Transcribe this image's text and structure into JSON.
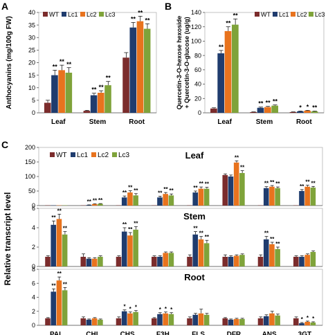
{
  "colors": {
    "WT": "#7b2c2c",
    "Lc1": "#1f3c6e",
    "Lc2": "#e8731e",
    "Lc3": "#7fa33a"
  },
  "chart_data": [
    {
      "panel": "A",
      "type": "bar",
      "categories": [
        "Leaf",
        "Stem",
        "Root"
      ],
      "ylabel": "Anthocyanins (mg/100g FW)",
      "ylim": [
        0,
        40
      ],
      "yticks": [
        0,
        5,
        10,
        15,
        20,
        25,
        30,
        35,
        40
      ],
      "tick_labels": [
        "0",
        "5",
        "10",
        "15",
        "20",
        "25",
        "30",
        "35",
        "40"
      ],
      "legend": [
        "WT",
        "Lc1",
        "Lc2",
        "Lc3"
      ],
      "legend_position": "top-left",
      "series": [
        {
          "name": "WT",
          "values": [
            4,
            0.8,
            22
          ],
          "errors": [
            1,
            0.2,
            2
          ],
          "marks": [
            "",
            "",
            ""
          ]
        },
        {
          "name": "Lc1",
          "values": [
            15,
            7,
            34
          ],
          "errors": [
            2,
            0.8,
            2
          ],
          "marks": [
            "**",
            "**",
            "**"
          ]
        },
        {
          "name": "Lc2",
          "values": [
            17,
            8,
            36.5
          ],
          "errors": [
            2,
            0.8,
            2
          ],
          "marks": [
            "**",
            "**",
            "**"
          ]
        },
        {
          "name": "Lc3",
          "values": [
            16,
            11,
            33.5
          ],
          "errors": [
            2,
            1.5,
            2
          ],
          "marks": [
            "**",
            "**",
            "**"
          ]
        }
      ]
    },
    {
      "panel": "B",
      "type": "bar",
      "categories": [
        "Leaf",
        "Stem",
        "Root"
      ],
      "ylabel": "Quercetin-3-O-hexose hexoside\n+ Quercetin-3-O-glucose (ug/g)",
      "ylim": [
        0,
        140
      ],
      "yticks": [
        0,
        20,
        40,
        60,
        80,
        100,
        120,
        140
      ],
      "tick_labels": [
        "0",
        "20",
        "40",
        "60",
        "80",
        "100",
        "120",
        "140"
      ],
      "legend": [
        "WT",
        "Lc1",
        "Lc2",
        "Lc3"
      ],
      "legend_position": "top-right",
      "series": [
        {
          "name": "WT",
          "values": [
            6,
            1,
            1
          ],
          "errors": [
            1,
            0.3,
            0.3
          ],
          "marks": [
            "",
            "",
            ""
          ]
        },
        {
          "name": "Lc1",
          "values": [
            83,
            7,
            2
          ],
          "errors": [
            4,
            1,
            0.5
          ],
          "marks": [
            "**",
            "**",
            "*"
          ]
        },
        {
          "name": "Lc2",
          "values": [
            114,
            8,
            3
          ],
          "errors": [
            6,
            1,
            0.5
          ],
          "marks": [
            "**",
            "**",
            "*"
          ]
        },
        {
          "name": "Lc3",
          "values": [
            123,
            10,
            2
          ],
          "errors": [
            8,
            1,
            0.5
          ],
          "marks": [
            "**",
            "**",
            "**"
          ]
        }
      ]
    },
    {
      "panel": "C",
      "type": "bar",
      "title": "Leaf",
      "categories": [
        "PAL",
        "CHI",
        "CHS",
        "F3H",
        "FLS",
        "DFR",
        "ANS",
        "3GT"
      ],
      "ylim": [
        0,
        200
      ],
      "yticks": [
        0,
        50,
        100,
        150,
        200
      ],
      "tick_labels": [
        "0",
        "50",
        "100",
        "150",
        "200"
      ],
      "legend": [
        "WT",
        "Lc1",
        "Lc2",
        "Lc3"
      ],
      "legend_position": "top-left",
      "series": [
        {
          "name": "WT",
          "values": [
            1,
            1,
            1,
            1,
            1,
            105,
            1,
            1
          ],
          "errors": [
            0,
            0,
            0,
            0,
            0,
            4,
            0,
            0
          ],
          "marks": [
            "",
            "",
            "",
            "",
            "",
            "",
            "",
            ""
          ]
        },
        {
          "name": "Lc1",
          "values": [
            1,
            2,
            28,
            28,
            45,
            100,
            60,
            50
          ],
          "errors": [
            0,
            0.5,
            5,
            4,
            5,
            5,
            5,
            5
          ],
          "marks": [
            "",
            "**",
            "**",
            "**",
            "**",
            "",
            "**",
            "**"
          ]
        },
        {
          "name": "Lc2",
          "values": [
            1,
            5,
            45,
            40,
            58,
            148,
            65,
            65
          ],
          "errors": [
            0,
            1,
            6,
            5,
            6,
            6,
            4,
            5
          ],
          "marks": [
            "",
            "**",
            "**",
            "**",
            "**",
            "**",
            "**",
            "**"
          ]
        },
        {
          "name": "Lc3",
          "values": [
            1,
            6,
            35,
            35,
            58,
            112,
            60,
            62
          ],
          "errors": [
            0,
            1,
            6,
            5,
            5,
            8,
            4,
            4
          ],
          "marks": [
            "",
            "**",
            "**",
            "**",
            "**",
            "**",
            "**",
            "**"
          ]
        }
      ]
    },
    {
      "panel": "C",
      "type": "bar",
      "title": "Stem",
      "categories": [
        "PAL",
        "CHI",
        "CHS",
        "F3H",
        "FLS",
        "DFR",
        "ANS",
        "3GT"
      ],
      "ylim": [
        0,
        6
      ],
      "yticks": [
        0,
        2,
        4,
        6
      ],
      "tick_labels": [
        "0",
        "2",
        "4",
        "6"
      ],
      "series": [
        {
          "name": "WT",
          "values": [
            1,
            1,
            1,
            1,
            1,
            1,
            1,
            1
          ],
          "errors": [
            0.1,
            0.3,
            0.1,
            0.1,
            0.2,
            0.2,
            0.2,
            0.1
          ],
          "marks": [
            "",
            "",
            "",
            "",
            "",
            "",
            "",
            ""
          ]
        },
        {
          "name": "Lc1",
          "values": [
            4.3,
            0.8,
            3.6,
            1,
            3.3,
            1,
            2.8,
            1
          ],
          "errors": [
            0.4,
            0.1,
            0.4,
            0.1,
            0.3,
            0.1,
            0.3,
            0.1
          ],
          "marks": [
            "**",
            "",
            "**",
            "",
            "**",
            "",
            "**",
            ""
          ]
        },
        {
          "name": "Lc2",
          "values": [
            4.9,
            0.8,
            3.2,
            1.4,
            2.8,
            1.1,
            2.3,
            1.2
          ],
          "errors": [
            0.5,
            0.1,
            0.3,
            0.1,
            0.3,
            0.1,
            0.2,
            0.1
          ],
          "marks": [
            "**",
            "",
            "**",
            "",
            "**",
            "",
            "**",
            ""
          ]
        },
        {
          "name": "Lc3",
          "values": [
            3.3,
            1,
            3.8,
            1.4,
            2.4,
            1.2,
            1.8,
            1.5
          ],
          "errors": [
            0.3,
            0.1,
            0.3,
            0.1,
            0.3,
            0.1,
            0.2,
            0.1
          ],
          "marks": [
            "**",
            "",
            "**",
            "",
            "**",
            "",
            "**",
            ""
          ]
        }
      ]
    },
    {
      "panel": "C",
      "type": "bar",
      "title": "Root",
      "categories": [
        "PAL",
        "CHI",
        "CHS",
        "F3H",
        "FLS",
        "DFR",
        "ANS",
        "3GT"
      ],
      "ylim": [
        0,
        8
      ],
      "yticks": [
        0,
        2,
        4,
        6,
        8
      ],
      "tick_labels": [
        "0",
        "2",
        "4",
        "6",
        "8"
      ],
      "series": [
        {
          "name": "WT",
          "values": [
            1,
            1,
            1,
            1,
            1,
            1,
            1,
            1
          ],
          "errors": [
            0.1,
            0.2,
            0.2,
            0.1,
            0.2,
            0.1,
            0.2,
            0.2
          ],
          "marks": [
            "",
            "",
            "",
            "",
            "",
            "",
            "",
            ""
          ]
        },
        {
          "name": "Lc1",
          "values": [
            4.8,
            0.8,
            2,
            1.6,
            1.5,
            0.8,
            1.3,
            0.3
          ],
          "errors": [
            0.4,
            0.1,
            0.2,
            0.2,
            0.2,
            0.1,
            0.2,
            0.1
          ],
          "marks": [
            "**",
            "",
            "*",
            "*",
            "",
            "",
            "",
            "*"
          ]
        },
        {
          "name": "Lc2",
          "values": [
            6.4,
            1,
            1.7,
            1.7,
            1.7,
            0.9,
            1.7,
            0.5
          ],
          "errors": [
            0.5,
            0.1,
            0.2,
            0.2,
            0.6,
            0.1,
            0.3,
            0.1
          ],
          "marks": [
            "**",
            "",
            "*",
            "*",
            "",
            "",
            "",
            "*"
          ]
        },
        {
          "name": "Lc3",
          "values": [
            5,
            0.8,
            1.9,
            1.6,
            1.5,
            0.9,
            1.4,
            0.4
          ],
          "errors": [
            0.4,
            0.1,
            0.2,
            0.2,
            0.2,
            0.1,
            0.2,
            0.1
          ],
          "marks": [
            "**",
            "",
            "*",
            "*",
            "",
            "",
            "",
            "*"
          ]
        }
      ]
    }
  ],
  "panel_labels": [
    "A",
    "B",
    "C"
  ],
  "c_ylabel": "Relative transcript level"
}
